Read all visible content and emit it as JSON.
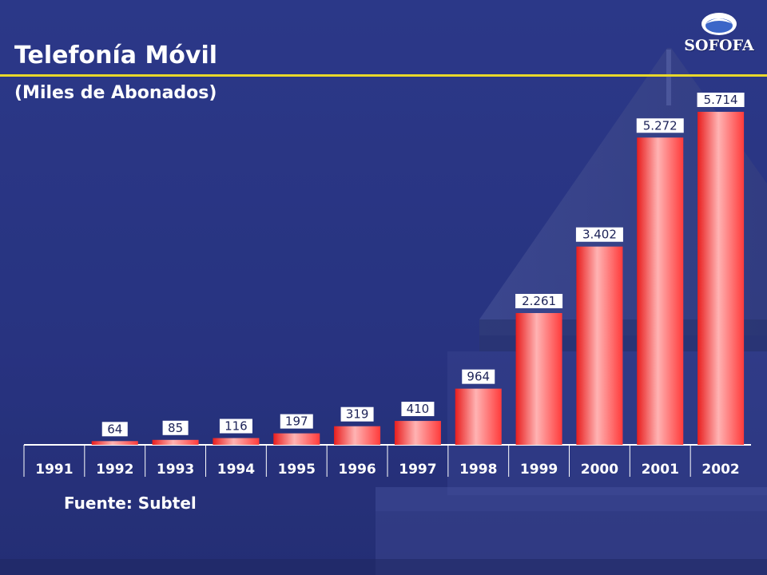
{
  "header": {
    "title": "Telefonía Móvil",
    "subtitle": "(Miles de Abonados)"
  },
  "logo": {
    "text": "SOFOFA"
  },
  "footer": {
    "source": "Fuente: Subtel"
  },
  "colors": {
    "background": "#27337f",
    "accent_rule": "#e8d72a",
    "bar_base": "#ff3b3b",
    "bar_highlight": "#ffb3b3",
    "label_box": "#ffffff"
  },
  "chart_data": {
    "type": "bar",
    "title": "Telefonía Móvil",
    "subtitle": "(Miles de Abonados)",
    "categories": [
      "1991",
      "1992",
      "1993",
      "1994",
      "1995",
      "1996",
      "1997",
      "1998",
      "1999",
      "2000",
      "2001",
      "2002"
    ],
    "values": [
      null,
      64,
      85,
      116,
      197,
      319,
      410,
      964,
      2261,
      3402,
      5272,
      5714
    ],
    "value_labels": [
      "",
      "64",
      "85",
      "116",
      "197",
      "319",
      "410",
      "964",
      "2.261",
      "3.402",
      "5.272",
      "5.714"
    ],
    "xlabel": "",
    "ylabel": "",
    "grid": false,
    "legend": "none"
  }
}
